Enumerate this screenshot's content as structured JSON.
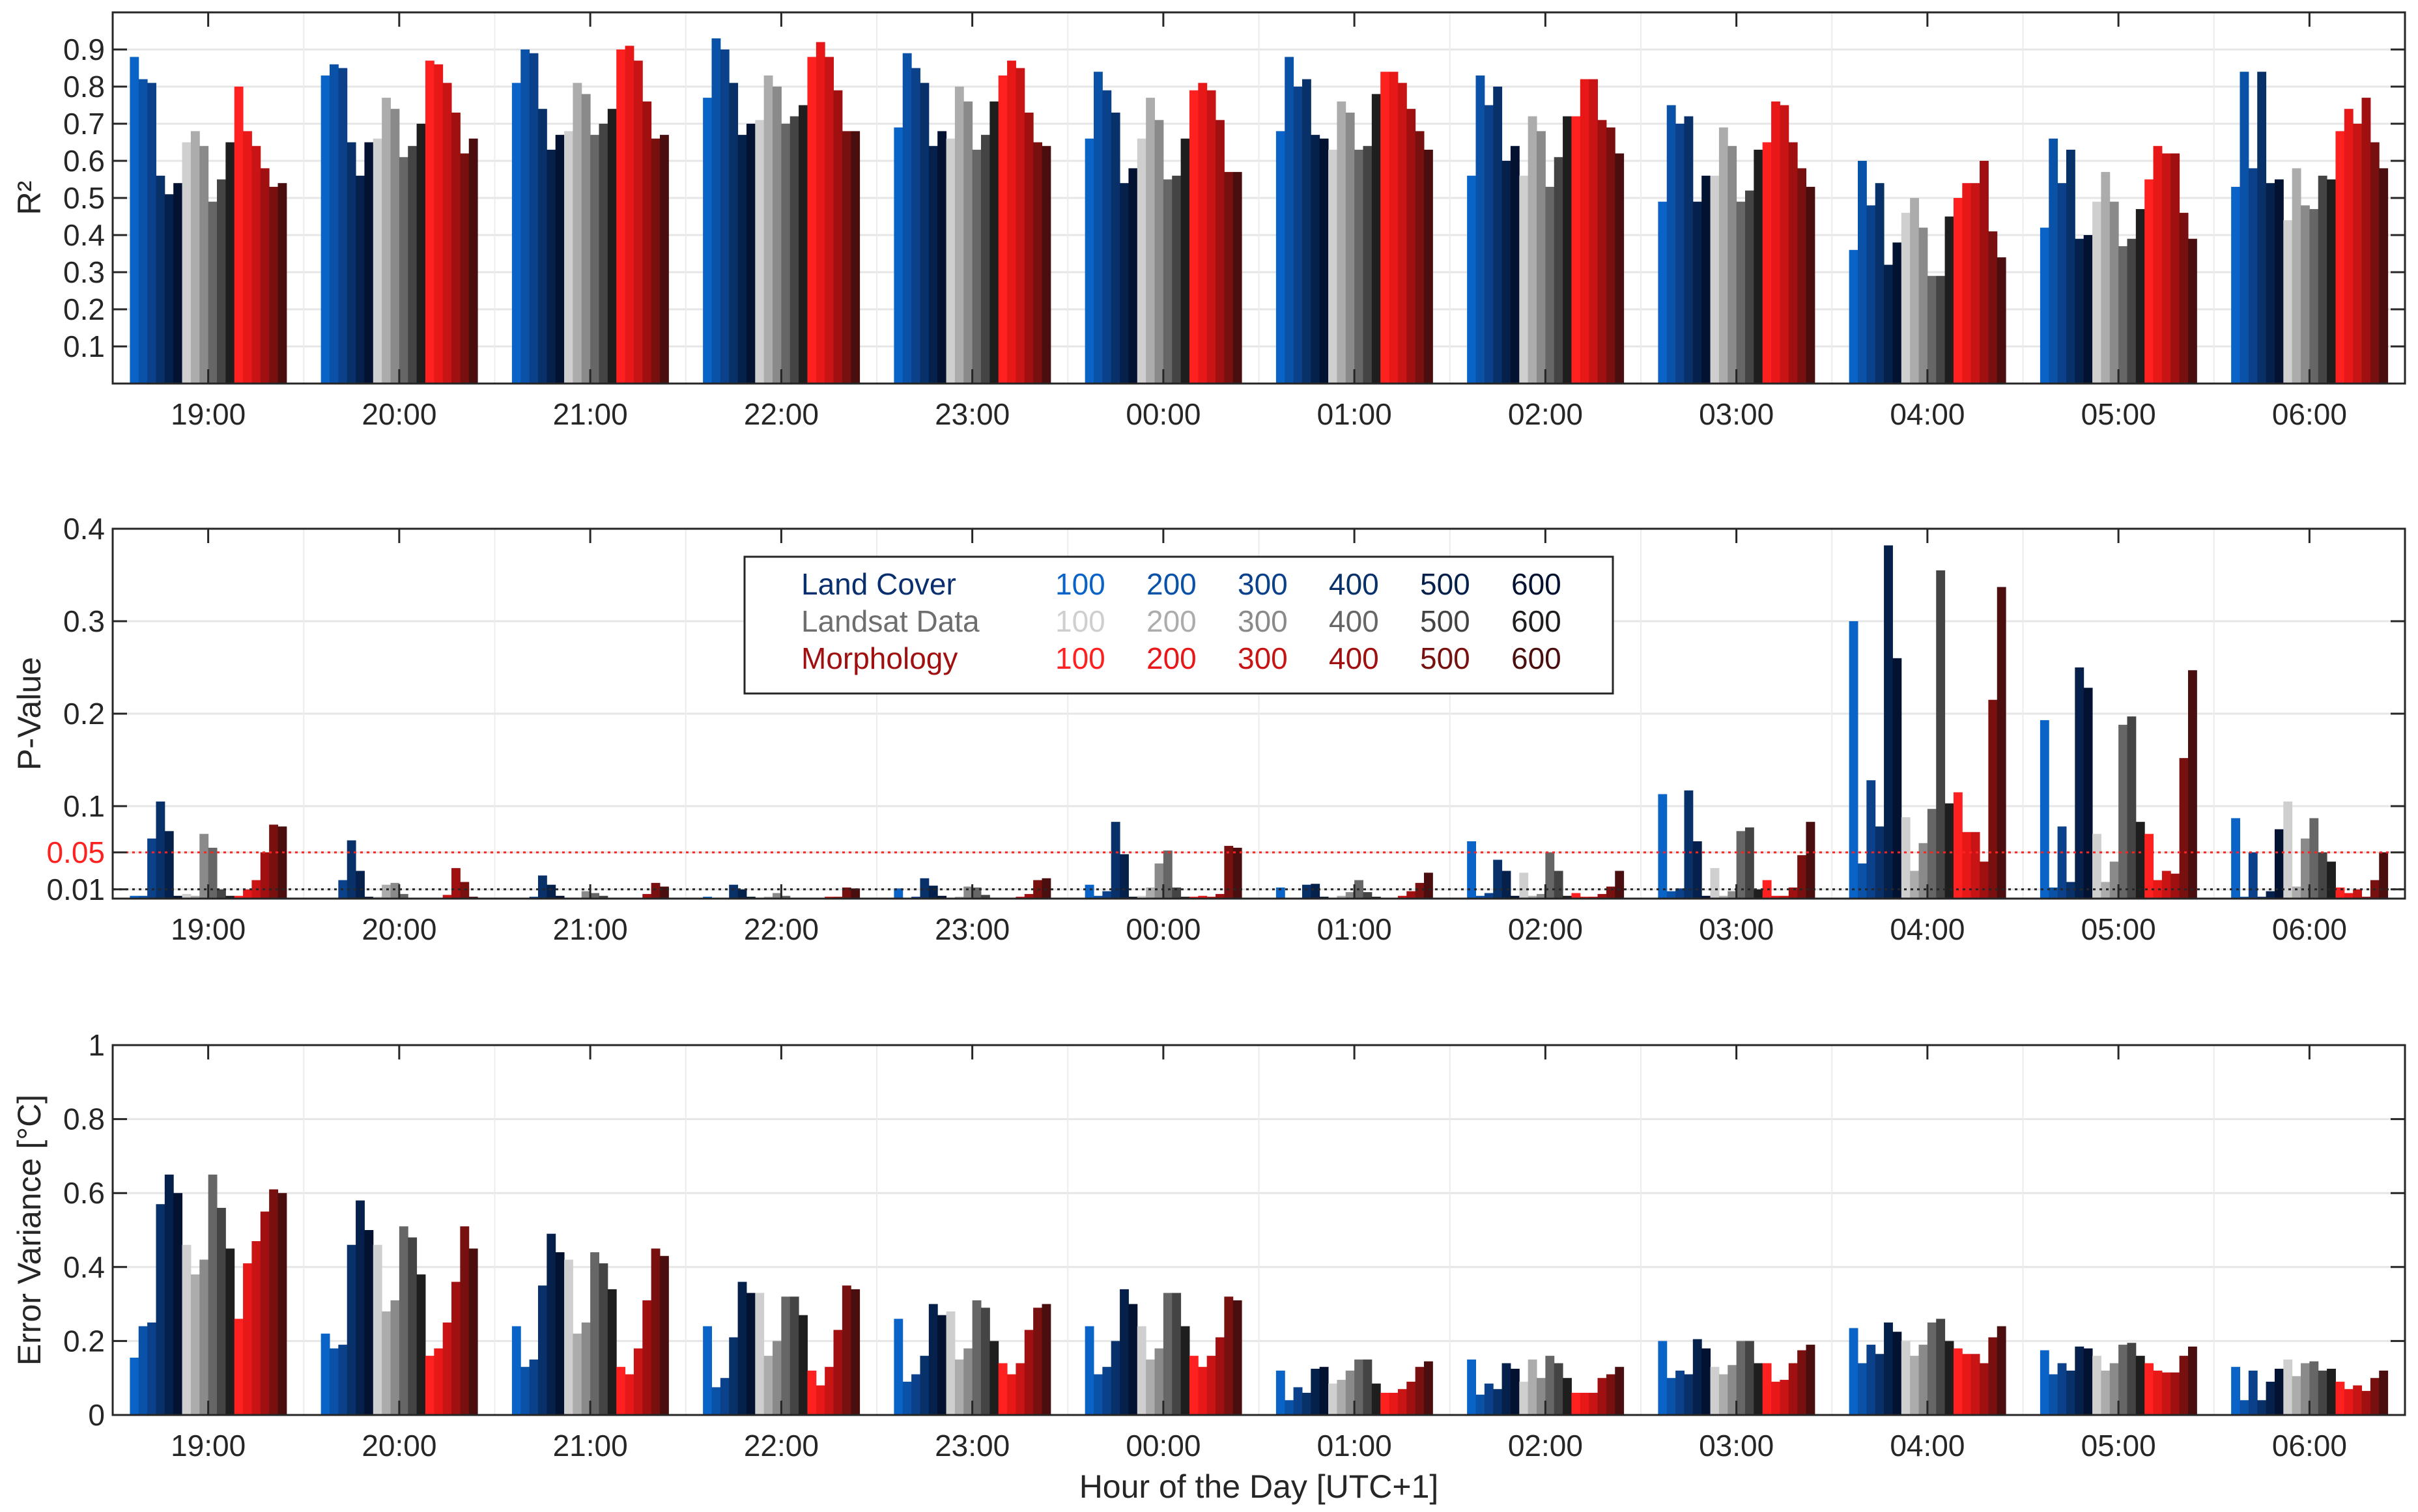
{
  "chart_data": [
    {
      "type": "bar",
      "ylabel": "R²",
      "ylim": [
        0,
        1
      ],
      "yticks": [
        "0.1",
        "0.2",
        "0.3",
        "0.4",
        "0.5",
        "0.6",
        "0.7",
        "0.8",
        "0.9"
      ],
      "ytick_values": [
        0.1,
        0.2,
        0.3,
        0.4,
        0.5,
        0.6,
        0.7,
        0.8,
        0.9
      ],
      "categories": [
        "19:00",
        "20:00",
        "21:00",
        "22:00",
        "23:00",
        "00:00",
        "01:00",
        "02:00",
        "03:00",
        "04:00",
        "05:00",
        "06:00"
      ],
      "grid": true,
      "values": [
        [
          0.88,
          0.82,
          0.81,
          0.56,
          0.51,
          0.54,
          0.65,
          0.68,
          0.64,
          0.49,
          0.55,
          0.65,
          0.8,
          0.68,
          0.64,
          0.58,
          0.53,
          0.54
        ],
        [
          0.83,
          0.86,
          0.85,
          0.65,
          0.56,
          0.65,
          0.66,
          0.77,
          0.74,
          0.61,
          0.64,
          0.7,
          0.87,
          0.86,
          0.81,
          0.73,
          0.62,
          0.66
        ],
        [
          0.81,
          0.9,
          0.89,
          0.74,
          0.63,
          0.67,
          0.68,
          0.81,
          0.78,
          0.67,
          0.7,
          0.74,
          0.9,
          0.91,
          0.87,
          0.76,
          0.66,
          0.67
        ],
        [
          0.77,
          0.93,
          0.9,
          0.81,
          0.67,
          0.7,
          0.71,
          0.83,
          0.8,
          0.7,
          0.72,
          0.75,
          0.88,
          0.92,
          0.88,
          0.79,
          0.68,
          0.68
        ],
        [
          0.69,
          0.89,
          0.85,
          0.81,
          0.64,
          0.68,
          0.66,
          0.8,
          0.76,
          0.63,
          0.67,
          0.76,
          0.83,
          0.87,
          0.85,
          0.73,
          0.65,
          0.64
        ],
        [
          0.66,
          0.84,
          0.79,
          0.73,
          0.54,
          0.58,
          0.66,
          0.77,
          0.71,
          0.55,
          0.56,
          0.66,
          0.79,
          0.81,
          0.79,
          0.71,
          0.57,
          0.57
        ],
        [
          0.68,
          0.88,
          0.8,
          0.82,
          0.67,
          0.66,
          0.63,
          0.76,
          0.73,
          0.63,
          0.64,
          0.78,
          0.84,
          0.84,
          0.81,
          0.74,
          0.68,
          0.63
        ],
        [
          0.56,
          0.83,
          0.75,
          0.8,
          0.6,
          0.64,
          0.56,
          0.72,
          0.68,
          0.53,
          0.61,
          0.72,
          0.72,
          0.82,
          0.82,
          0.71,
          0.69,
          0.62
        ],
        [
          0.49,
          0.75,
          0.7,
          0.72,
          0.49,
          0.56,
          0.56,
          0.69,
          0.64,
          0.49,
          0.52,
          0.63,
          0.65,
          0.76,
          0.75,
          0.65,
          0.58,
          0.53
        ],
        [
          0.36,
          0.6,
          0.48,
          0.54,
          0.32,
          0.38,
          0.46,
          0.5,
          0.42,
          0.29,
          0.29,
          0.45,
          0.5,
          0.54,
          0.54,
          0.6,
          0.41,
          0.34
        ],
        [
          0.42,
          0.66,
          0.54,
          0.63,
          0.39,
          0.4,
          0.49,
          0.57,
          0.49,
          0.37,
          0.39,
          0.47,
          0.55,
          0.64,
          0.62,
          0.62,
          0.46,
          0.39
        ],
        [
          0.53,
          0.84,
          0.58,
          0.84,
          0.54,
          0.55,
          0.44,
          0.58,
          0.48,
          0.47,
          0.56,
          0.55,
          0.68,
          0.74,
          0.7,
          0.77,
          0.65,
          0.58
        ]
      ]
    },
    {
      "type": "bar",
      "ylabel": "P-Value",
      "ylim": [
        0,
        0.4
      ],
      "yticks": [
        "0.01",
        "0.05",
        "0.1",
        "0.2",
        "0.3",
        "0.4"
      ],
      "ytick_values": [
        0.01,
        0.05,
        0.1,
        0.2,
        0.3,
        0.4
      ],
      "highlight_tick": "0.05",
      "reference_lines": [
        {
          "value": 0.05,
          "color": "#ff2020"
        },
        {
          "value": 0.01,
          "color": "#262626"
        }
      ],
      "categories": [
        "19:00",
        "20:00",
        "21:00",
        "22:00",
        "23:00",
        "00:00",
        "01:00",
        "02:00",
        "03:00",
        "04:00",
        "05:00",
        "06:00"
      ],
      "grid": true,
      "legend": {
        "placement": "top-center",
        "rows": [
          {
            "label": "Land Cover",
            "label_color": "#0a2f6e",
            "items": [
              "100",
              "200",
              "300",
              "400",
              "500",
              "600"
            ],
            "colors": [
              "#0a64c8",
              "#0a52a8",
              "#0a418a",
              "#08316a",
              "#05204a",
              "#031230"
            ]
          },
          {
            "label": "Landsat Data",
            "label_color": "#6e6e6e",
            "items": [
              "100",
              "200",
              "300",
              "400",
              "500",
              "600"
            ],
            "colors": [
              "#cfcfcf",
              "#acacac",
              "#8a8a8a",
              "#666666",
              "#444444",
              "#1e1e1e"
            ]
          },
          {
            "label": "Morphology",
            "label_color": "#a01010",
            "items": [
              "100",
              "200",
              "300",
              "400",
              "500",
              "600"
            ],
            "colors": [
              "#ff2020",
              "#e81818",
              "#c81414",
              "#a01010",
              "#781010",
              "#4a0e0e"
            ]
          }
        ]
      },
      "values": [
        [
          0.003,
          0.003,
          0.065,
          0.105,
          0.073,
          0.003,
          0.005,
          0.003,
          0.07,
          0.055,
          0.01,
          0.003,
          0.003,
          0.01,
          0.02,
          0.05,
          0.08,
          0.078
        ],
        [
          0.001,
          0.001,
          0.02,
          0.063,
          0.03,
          0.002,
          0.002,
          0.015,
          0.017,
          0.005,
          0.001,
          0.001,
          0.001,
          0.001,
          0.004,
          0.033,
          0.018,
          0.002
        ],
        [
          0.001,
          0.001,
          0.002,
          0.025,
          0.015,
          0.003,
          0.001,
          0.001,
          0.008,
          0.006,
          0.003,
          0.001,
          0.001,
          0.001,
          0.001,
          0.005,
          0.017,
          0.013
        ],
        [
          0.002,
          0.001,
          0.001,
          0.015,
          0.01,
          0.002,
          0.001,
          0.002,
          0.006,
          0.003,
          0.001,
          0.001,
          0.001,
          0.001,
          0.002,
          0.002,
          0.012,
          0.011
        ],
        [
          0.011,
          0.001,
          0.002,
          0.022,
          0.014,
          0.003,
          0.001,
          0.002,
          0.013,
          0.012,
          0.004,
          0.001,
          0.001,
          0.001,
          0.002,
          0.005,
          0.02,
          0.022
        ],
        [
          0.015,
          0.003,
          0.008,
          0.083,
          0.048,
          0.002,
          0.003,
          0.012,
          0.038,
          0.052,
          0.012,
          0.002,
          0.002,
          0.003,
          0.002,
          0.005,
          0.057,
          0.055
        ],
        [
          0.012,
          0.001,
          0.001,
          0.015,
          0.016,
          0.002,
          0.001,
          0.003,
          0.007,
          0.02,
          0.007,
          0.002,
          0.001,
          0.001,
          0.003,
          0.008,
          0.017,
          0.028
        ],
        [
          0.062,
          0.003,
          0.006,
          0.042,
          0.03,
          0.003,
          0.028,
          0.003,
          0.005,
          0.05,
          0.03,
          0.003,
          0.006,
          0.002,
          0.002,
          0.005,
          0.013,
          0.03
        ],
        [
          0.113,
          0.008,
          0.011,
          0.117,
          0.062,
          0.003,
          0.033,
          0.003,
          0.008,
          0.073,
          0.077,
          0.01,
          0.02,
          0.003,
          0.003,
          0.012,
          0.047,
          0.083
        ],
        [
          0.3,
          0.038,
          0.128,
          0.078,
          0.382,
          0.26,
          0.088,
          0.03,
          0.06,
          0.097,
          0.355,
          0.103,
          0.115,
          0.072,
          0.072,
          0.04,
          0.215,
          0.337
        ],
        [
          0.193,
          0.012,
          0.078,
          0.018,
          0.25,
          0.228,
          0.07,
          0.018,
          0.04,
          0.188,
          0.197,
          0.083,
          0.07,
          0.02,
          0.03,
          0.027,
          0.152,
          0.247
        ],
        [
          0.087,
          0.002,
          0.05,
          0.002,
          0.008,
          0.075,
          0.105,
          0.013,
          0.065,
          0.087,
          0.05,
          0.04,
          0.012,
          0.006,
          0.01,
          0.002,
          0.02,
          0.05
        ]
      ]
    },
    {
      "type": "bar",
      "ylabel": "Error Variance [°C]",
      "xlabel": "Hour of the Day [UTC+1]",
      "ylim": [
        0,
        1
      ],
      "yticks": [
        "0",
        "0.2",
        "0.4",
        "0.6",
        "0.8",
        "1"
      ],
      "ytick_values": [
        0,
        0.2,
        0.4,
        0.6,
        0.8,
        1
      ],
      "categories": [
        "19:00",
        "20:00",
        "21:00",
        "22:00",
        "23:00",
        "00:00",
        "01:00",
        "02:00",
        "03:00",
        "04:00",
        "05:00",
        "06:00"
      ],
      "grid": true,
      "values": [
        [
          0.155,
          0.24,
          0.25,
          0.57,
          0.65,
          0.6,
          0.46,
          0.38,
          0.42,
          0.65,
          0.56,
          0.45,
          0.26,
          0.41,
          0.47,
          0.55,
          0.61,
          0.6
        ],
        [
          0.22,
          0.18,
          0.19,
          0.46,
          0.58,
          0.5,
          0.46,
          0.28,
          0.31,
          0.51,
          0.48,
          0.38,
          0.16,
          0.18,
          0.25,
          0.36,
          0.51,
          0.45
        ],
        [
          0.24,
          0.13,
          0.15,
          0.35,
          0.49,
          0.44,
          0.42,
          0.22,
          0.25,
          0.44,
          0.41,
          0.34,
          0.13,
          0.11,
          0.18,
          0.31,
          0.45,
          0.43
        ],
        [
          0.24,
          0.075,
          0.1,
          0.21,
          0.36,
          0.33,
          0.33,
          0.16,
          0.2,
          0.32,
          0.32,
          0.27,
          0.12,
          0.08,
          0.13,
          0.23,
          0.35,
          0.34
        ],
        [
          0.26,
          0.09,
          0.11,
          0.16,
          0.3,
          0.27,
          0.28,
          0.15,
          0.18,
          0.31,
          0.29,
          0.2,
          0.14,
          0.11,
          0.14,
          0.23,
          0.29,
          0.3
        ],
        [
          0.24,
          0.11,
          0.13,
          0.2,
          0.34,
          0.3,
          0.24,
          0.15,
          0.18,
          0.33,
          0.33,
          0.24,
          0.16,
          0.13,
          0.16,
          0.21,
          0.32,
          0.31
        ],
        [
          0.12,
          0.04,
          0.075,
          0.06,
          0.125,
          0.13,
          0.085,
          0.095,
          0.12,
          0.15,
          0.15,
          0.085,
          0.06,
          0.06,
          0.07,
          0.09,
          0.13,
          0.145
        ],
        [
          0.15,
          0.055,
          0.085,
          0.07,
          0.14,
          0.125,
          0.09,
          0.15,
          0.1,
          0.16,
          0.14,
          0.1,
          0.06,
          0.06,
          0.06,
          0.1,
          0.11,
          0.13
        ],
        [
          0.2,
          0.1,
          0.12,
          0.11,
          0.205,
          0.18,
          0.13,
          0.11,
          0.135,
          0.2,
          0.2,
          0.14,
          0.14,
          0.09,
          0.095,
          0.14,
          0.175,
          0.19
        ],
        [
          0.235,
          0.14,
          0.19,
          0.165,
          0.25,
          0.225,
          0.2,
          0.16,
          0.19,
          0.25,
          0.26,
          0.2,
          0.18,
          0.165,
          0.165,
          0.14,
          0.21,
          0.24
        ],
        [
          0.175,
          0.11,
          0.14,
          0.12,
          0.185,
          0.18,
          0.16,
          0.12,
          0.14,
          0.19,
          0.195,
          0.16,
          0.14,
          0.12,
          0.115,
          0.115,
          0.16,
          0.185
        ],
        [
          0.13,
          0.04,
          0.12,
          0.04,
          0.09,
          0.125,
          0.15,
          0.105,
          0.14,
          0.145,
          0.12,
          0.125,
          0.09,
          0.07,
          0.08,
          0.065,
          0.1,
          0.12
        ]
      ]
    }
  ]
}
